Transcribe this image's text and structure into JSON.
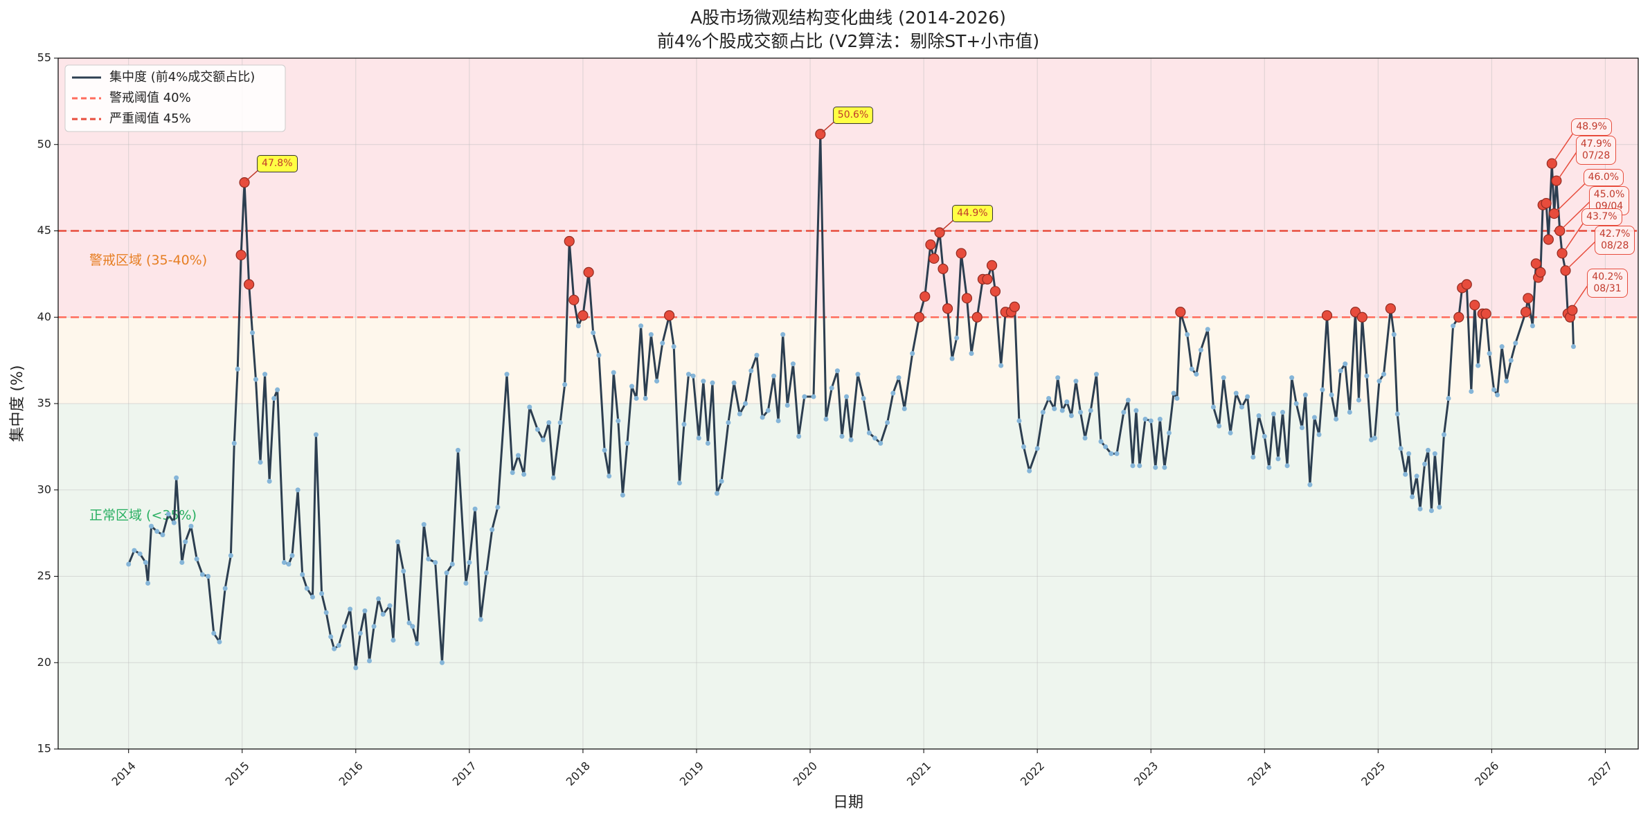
{
  "chart_data": {
    "type": "line",
    "title": "A股市场微观结构变化曲线 (2014-2026)",
    "subtitle": "前4%个股成交额占比 (V2算法：剔除ST+小市值)",
    "x_label": "日期",
    "y_label": "集中度 (%)",
    "xlim": [
      2013.38,
      2027.29
    ],
    "xticks": [
      2014,
      2015,
      2016,
      2017,
      2018,
      2019,
      2020,
      2021,
      2022,
      2023,
      2024,
      2025,
      2026,
      2027
    ],
    "ylim": [
      15,
      55
    ],
    "yticks": [
      15,
      20,
      25,
      30,
      35,
      40,
      45,
      50,
      55
    ],
    "grid": true,
    "legend": "upper left",
    "zones": [
      {
        "range": [
          40,
          55
        ],
        "color": "#fde6e9"
      },
      {
        "range": [
          35,
          40
        ],
        "color": "#fef7ec",
        "label": "警戒区域 (35-40%)",
        "label_color": "#e67e22"
      },
      {
        "range": [
          15,
          35
        ],
        "color": "#eef5ee",
        "label": "正常区域 (<35%)",
        "label_color": "#27ae60"
      }
    ],
    "thresholds": [
      {
        "value": 40,
        "label": "警戒阈值 40%",
        "color": "#ff6b5b"
      },
      {
        "value": 45,
        "label": "严重阈值 45%",
        "color": "#e74c3c"
      }
    ],
    "x": [
      2014.0,
      2014.05,
      2014.1,
      2014.15,
      2014.17,
      2014.2,
      2014.25,
      2014.3,
      2014.35,
      2014.4,
      2014.42,
      2014.47,
      2014.5,
      2014.55,
      2014.6,
      2014.65,
      2014.7,
      2014.75,
      2014.8,
      2014.85,
      2014.9,
      2014.93,
      2014.96,
      2014.99,
      2015.02,
      2015.06,
      2015.09,
      2015.12,
      2015.16,
      2015.2,
      2015.24,
      2015.28,
      2015.31,
      2015.37,
      2015.41,
      2015.44,
      2015.49,
      2015.53,
      2015.57,
      2015.62,
      2015.65,
      2015.7,
      2015.74,
      2015.78,
      2015.81,
      2015.85,
      2015.9,
      2015.95,
      2016.0,
      2016.04,
      2016.08,
      2016.12,
      2016.16,
      2016.2,
      2016.24,
      2016.3,
      2016.33,
      2016.37,
      2016.42,
      2016.47,
      2016.5,
      2016.54,
      2016.6,
      2016.64,
      2016.7,
      2016.76,
      2016.8,
      2016.85,
      2016.9,
      2016.97,
      2017.0,
      2017.05,
      2017.1,
      2017.15,
      2017.2,
      2017.25,
      2017.33,
      2017.38,
      2017.43,
      2017.48,
      2017.53,
      2017.6,
      2017.65,
      2017.7,
      2017.74,
      2017.8,
      2017.84,
      2017.88,
      2017.92,
      2017.96,
      2018.0,
      2018.05,
      2018.09,
      2018.14,
      2018.19,
      2018.23,
      2018.27,
      2018.31,
      2018.35,
      2018.39,
      2018.43,
      2018.47,
      2018.51,
      2018.55,
      2018.6,
      2018.65,
      2018.7,
      2018.76,
      2018.8,
      2018.85,
      2018.89,
      2018.93,
      2018.97,
      2019.02,
      2019.06,
      2019.1,
      2019.14,
      2019.18,
      2019.22,
      2019.28,
      2019.33,
      2019.38,
      2019.43,
      2019.48,
      2019.53,
      2019.58,
      2019.63,
      2019.68,
      2019.72,
      2019.76,
      2019.8,
      2019.85,
      2019.9,
      2019.95,
      2020.03,
      2020.09,
      2020.14,
      2020.19,
      2020.24,
      2020.28,
      2020.32,
      2020.36,
      2020.42,
      2020.47,
      2020.52,
      2020.57,
      2020.62,
      2020.68,
      2020.73,
      2020.78,
      2020.83,
      2020.9,
      2020.96,
      2021.01,
      2021.06,
      2021.09,
      2021.14,
      2021.17,
      2021.21,
      2021.25,
      2021.29,
      2021.33,
      2021.38,
      2021.42,
      2021.47,
      2021.52,
      2021.56,
      2021.6,
      2021.63,
      2021.68,
      2021.72,
      2021.77,
      2021.8,
      2021.84,
      2021.88,
      2021.93,
      2022.0,
      2022.05,
      2022.1,
      2022.15,
      2022.18,
      2022.22,
      2022.26,
      2022.3,
      2022.34,
      2022.38,
      2022.42,
      2022.47,
      2022.52,
      2022.56,
      2022.6,
      2022.65,
      2022.7,
      2022.76,
      2022.8,
      2022.84,
      2022.87,
      2022.9,
      2022.95,
      2023.0,
      2023.04,
      2023.08,
      2023.12,
      2023.16,
      2023.2,
      2023.23,
      2023.26,
      2023.32,
      2023.36,
      2023.4,
      2023.44,
      2023.5,
      2023.55,
      2023.6,
      2023.64,
      2023.7,
      2023.75,
      2023.8,
      2023.85,
      2023.9,
      2023.95,
      2024.0,
      2024.04,
      2024.08,
      2024.12,
      2024.16,
      2024.2,
      2024.24,
      2024.28,
      2024.33,
      2024.36,
      2024.4,
      2024.44,
      2024.48,
      2024.51,
      2024.55,
      2024.59,
      2024.63,
      2024.67,
      2024.71,
      2024.75,
      2024.8,
      2024.83,
      2024.86,
      2024.9,
      2024.94,
      2024.97,
      2025.01,
      2025.05,
      2025.11,
      2025.14,
      2025.17,
      2025.2,
      2025.24,
      2025.27,
      2025.3,
      2025.34,
      2025.37,
      2025.41,
      2025.44,
      2025.47,
      2025.5,
      2025.54,
      2025.58,
      2025.62,
      2025.66,
      2025.71,
      2025.74,
      2025.78,
      2025.82,
      2025.85,
      2025.88,
      2025.92,
      2025.95,
      2025.98,
      2026.02,
      2026.05,
      2026.09,
      2026.13,
      2026.17,
      2026.21,
      2026.3,
      2026.32,
      2026.36,
      2026.39,
      2026.41,
      2026.43,
      2026.45,
      2026.48,
      2026.5,
      2026.53,
      2026.55,
      2026.57,
      2026.6,
      2026.62,
      2026.65,
      2026.67,
      2026.69,
      2026.71,
      2026.72
    ],
    "series": [
      {
        "name": "集中度 (前4%成交额占比)",
        "color": "#2c3e50",
        "marker_color": "#85b5d8",
        "highlight_color": "#e74c3c",
        "values": [
          25.7,
          26.5,
          26.3,
          25.8,
          24.6,
          27.9,
          27.6,
          27.4,
          28.6,
          28.1,
          30.7,
          25.8,
          27.0,
          27.9,
          26.0,
          25.1,
          25.0,
          21.7,
          21.2,
          24.3,
          26.2,
          32.7,
          37.0,
          43.6,
          47.8,
          41.9,
          39.1,
          36.4,
          31.6,
          36.7,
          30.5,
          35.3,
          35.8,
          25.8,
          25.7,
          26.2,
          30.0,
          25.1,
          24.3,
          23.8,
          33.2,
          24.0,
          22.9,
          21.5,
          20.8,
          21.0,
          22.1,
          23.1,
          19.7,
          21.7,
          23.0,
          20.1,
          22.1,
          23.7,
          22.8,
          23.3,
          21.3,
          27.0,
          25.3,
          22.3,
          22.1,
          21.1,
          28.0,
          26.0,
          25.8,
          20.0,
          25.2,
          25.7,
          32.3,
          24.6,
          25.8,
          28.9,
          22.5,
          25.2,
          27.7,
          29.0,
          36.7,
          31.0,
          32.0,
          30.9,
          34.8,
          33.5,
          32.9,
          33.9,
          30.7,
          33.9,
          36.1,
          44.4,
          41.0,
          39.5,
          40.1,
          42.6,
          39.1,
          37.8,
          32.3,
          30.8,
          36.8,
          34.0,
          29.7,
          32.7,
          36.0,
          35.3,
          39.5,
          35.3,
          39.0,
          36.3,
          38.5,
          40.1,
          38.3,
          30.4,
          33.8,
          36.7,
          36.6,
          33.0,
          36.3,
          32.7,
          36.2,
          29.8,
          30.5,
          33.9,
          36.2,
          34.4,
          35.0,
          36.9,
          37.8,
          34.2,
          34.6,
          36.6,
          34.0,
          39.0,
          34.9,
          37.3,
          33.1,
          35.4,
          35.4,
          50.6,
          34.1,
          35.9,
          36.9,
          33.1,
          35.4,
          32.9,
          36.7,
          35.3,
          33.3,
          33.0,
          32.7,
          33.9,
          35.6,
          36.5,
          34.7,
          37.9,
          40.0,
          41.2,
          44.2,
          43.4,
          44.9,
          42.8,
          40.5,
          37.6,
          38.8,
          43.7,
          41.1,
          37.9,
          40.0,
          42.2,
          42.2,
          43.0,
          41.5,
          37.2,
          40.3,
          40.3,
          40.6,
          34.0,
          32.5,
          31.1,
          32.4,
          34.5,
          35.3,
          34.7,
          36.5,
          34.6,
          35.1,
          34.3,
          36.3,
          34.5,
          33.0,
          34.6,
          36.7,
          32.8,
          32.5,
          32.1,
          32.1,
          34.5,
          35.2,
          31.4,
          34.6,
          31.4,
          34.1,
          34.0,
          31.3,
          34.1,
          31.3,
          33.3,
          35.6,
          35.3,
          40.3,
          39.0,
          37.0,
          36.7,
          38.1,
          39.3,
          34.8,
          33.7,
          36.5,
          33.3,
          35.6,
          34.8,
          35.4,
          31.9,
          34.3,
          33.1,
          31.3,
          34.4,
          31.8,
          34.5,
          31.4,
          36.5,
          35.0,
          33.6,
          35.5,
          30.3,
          34.2,
          33.2,
          35.8,
          40.1,
          35.5,
          34.1,
          36.9,
          37.3,
          34.5,
          40.3,
          35.2,
          40.0,
          36.6,
          32.9,
          33.0,
          36.3,
          36.7,
          40.5,
          39.0,
          34.4,
          32.4,
          30.9,
          32.1,
          29.6,
          30.8,
          28.9,
          31.5,
          32.3,
          28.8,
          32.1,
          29.0,
          33.2,
          35.3,
          39.5,
          40.0,
          41.7,
          41.9,
          35.7,
          40.7,
          37.2,
          40.2,
          40.2,
          37.9,
          35.8,
          35.5,
          38.3,
          36.3,
          37.5,
          38.5,
          40.3,
          41.1,
          39.5,
          43.1,
          42.3,
          42.6,
          46.5,
          46.6,
          44.5,
          48.9,
          46.0,
          47.9,
          45.0,
          43.7,
          42.7,
          40.2,
          40.0,
          40.4,
          38.3
        ],
        "value_labels": [
          null,
          null,
          null,
          null,
          null,
          null,
          null,
          null,
          null,
          null,
          null,
          null,
          null,
          null,
          null,
          null,
          null,
          null,
          null,
          null,
          null,
          null,
          null,
          null,
          "47.8%",
          null,
          null,
          null,
          null,
          null,
          null,
          null,
          null,
          null,
          null,
          null,
          null,
          null,
          null,
          null,
          null,
          null,
          null,
          null,
          null,
          null,
          null,
          null,
          null,
          null,
          null,
          null,
          null,
          null,
          null,
          null,
          null,
          null,
          null,
          null,
          null,
          null,
          null,
          null,
          null,
          null,
          null,
          null,
          null,
          null,
          null,
          null,
          null,
          null,
          null,
          null,
          null,
          null,
          null,
          null,
          null,
          null,
          null,
          null,
          null,
          null,
          null,
          null,
          null,
          null,
          null,
          null,
          null,
          null,
          null,
          null,
          null,
          null,
          null,
          null,
          null,
          null,
          null,
          null,
          null,
          null,
          null,
          null,
          null,
          null,
          null,
          null,
          null,
          null,
          null,
          null,
          null,
          null,
          null,
          null,
          null,
          null,
          null,
          null,
          null,
          null,
          null,
          null,
          null,
          null,
          null,
          null,
          null,
          null,
          null,
          "50.6%",
          null,
          null,
          null,
          null,
          null,
          null,
          null,
          null,
          null,
          null,
          null,
          null,
          null,
          null,
          null,
          null,
          null,
          null,
          null,
          null,
          "44.9%",
          null,
          null,
          null,
          null,
          null,
          null,
          null,
          null,
          null,
          null,
          null,
          null,
          null,
          null,
          null,
          null,
          null,
          null,
          null,
          null,
          null,
          null,
          null,
          null,
          null,
          null,
          null,
          null,
          null,
          null,
          null,
          null,
          null,
          null,
          null,
          null,
          null,
          null,
          null,
          null,
          null,
          null,
          null,
          null,
          null,
          null,
          null,
          null,
          null,
          null,
          null,
          null,
          null,
          null,
          null,
          null,
          null,
          null,
          null,
          null,
          null,
          null,
          null,
          null,
          null,
          null,
          null,
          null,
          null,
          null,
          null,
          null,
          null,
          null,
          null,
          null,
          null,
          null,
          null,
          null,
          null,
          null,
          null,
          null,
          null,
          null,
          null,
          null,
          null,
          null,
          null,
          null,
          null,
          null,
          null,
          null,
          null,
          null,
          null,
          null,
          null,
          null,
          null,
          null,
          null,
          null,
          null,
          null,
          null,
          null,
          null,
          null,
          null,
          null,
          null,
          null,
          null,
          null,
          null,
          null,
          null,
          null,
          null,
          null,
          null,
          null,
          null,
          null,
          null,
          null,
          null,
          null,
          null,
          "48.9%",
          "46.0%",
          "47.9%\n07/28",
          "45.0%\n09/04",
          "43.7%",
          "42.7%\n08/28",
          "40.2%\n08/31",
          null,
          null,
          null
        ]
      }
    ]
  }
}
